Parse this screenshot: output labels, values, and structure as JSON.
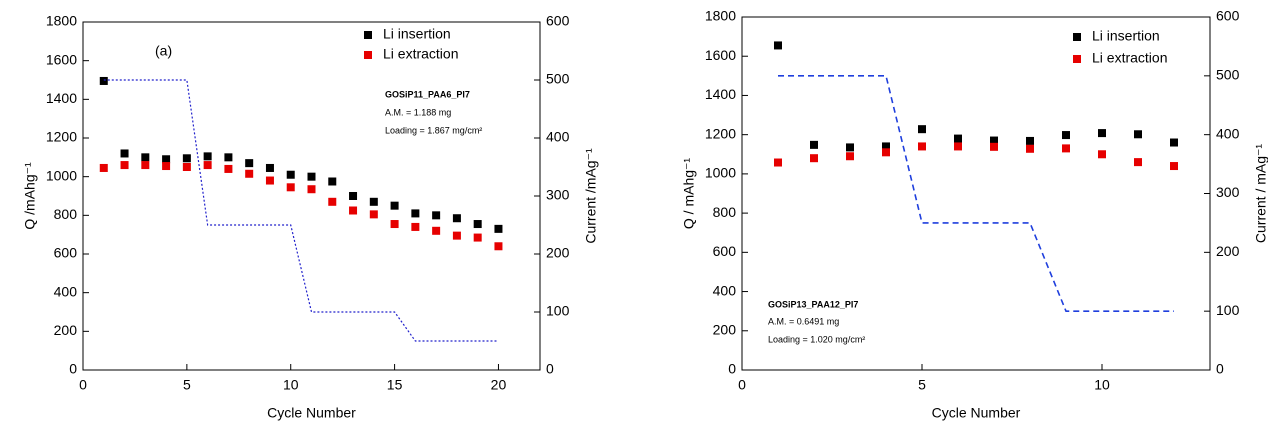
{
  "chart_data": [
    {
      "type": "scatter",
      "x": [
        1,
        2,
        3,
        4,
        5,
        6,
        7,
        8,
        9,
        10,
        11,
        12,
        13,
        14,
        15,
        16,
        17,
        18,
        19,
        20
      ],
      "series": [
        {
          "name": "Li insertion",
          "color": "#000000",
          "values": [
            1495,
            1120,
            1100,
            1090,
            1095,
            1105,
            1100,
            1070,
            1045,
            1010,
            1000,
            975,
            900,
            870,
            850,
            810,
            800,
            785,
            755,
            730
          ]
        },
        {
          "name": "Li extraction",
          "color": "#e60000",
          "values": [
            1045,
            1060,
            1060,
            1055,
            1050,
            1060,
            1040,
            1015,
            980,
            945,
            935,
            870,
            825,
            805,
            755,
            740,
            720,
            695,
            685,
            640
          ]
        },
        {
          "type": "line",
          "axis": "y2",
          "color": "#2222cc",
          "style": "dotted",
          "x": [
            1,
            5,
            6,
            10,
            11,
            15,
            16,
            20
          ],
          "values": [
            500,
            500,
            250,
            250,
            100,
            100,
            50,
            50
          ]
        }
      ],
      "xlabel": "Cycle Number",
      "ylabel": "Q /mAhg⁻¹",
      "y2label": "Current /mAg⁻¹",
      "xlim": [
        0,
        22
      ],
      "xticks": [
        0,
        5,
        10,
        15,
        20
      ],
      "ylim": [
        0,
        1800
      ],
      "yticks": [
        0,
        200,
        400,
        600,
        800,
        1000,
        1200,
        1400,
        1600,
        1800
      ],
      "y2lim": [
        0,
        600
      ],
      "y2ticks": [
        0,
        100,
        200,
        300,
        400,
        500,
        600
      ],
      "legend": "upper right",
      "annotations": [
        "(a)",
        "GOSiP11_PAA6_PI7",
        "A.M. = 1.188 mg",
        "Loading =  1.867 mg/cm²"
      ]
    },
    {
      "type": "scatter",
      "x": [
        1,
        2,
        3,
        4,
        5,
        6,
        7,
        8,
        9,
        10,
        11,
        12
      ],
      "series": [
        {
          "name": "Li insertion",
          "color": "#000000",
          "values": [
            1655,
            1148,
            1135,
            1140,
            1228,
            1180,
            1170,
            1168,
            1198,
            1208,
            1202,
            1160
          ]
        },
        {
          "name": "Li extraction",
          "color": "#e60000",
          "values": [
            1058,
            1080,
            1090,
            1110,
            1140,
            1140,
            1138,
            1128,
            1130,
            1100,
            1060,
            1040
          ]
        },
        {
          "type": "line",
          "axis": "y2",
          "color": "#1f3fdd",
          "style": "dashed",
          "x": [
            1,
            4,
            5,
            8,
            9,
            12
          ],
          "values": [
            500,
            500,
            250,
            250,
            100,
            100
          ]
        }
      ],
      "xlabel": "Cycle Number",
      "ylabel": "Q / mAhg⁻¹",
      "y2label": "Current / mAg⁻¹",
      "xlim": [
        0,
        13
      ],
      "xticks": [
        0,
        5,
        10
      ],
      "ylim": [
        0,
        1800
      ],
      "yticks": [
        0,
        200,
        400,
        600,
        800,
        1000,
        1200,
        1400,
        1600,
        1800
      ],
      "y2lim": [
        0,
        600
      ],
      "y2ticks": [
        0,
        100,
        200,
        300,
        400,
        500,
        600
      ],
      "legend": "upper right",
      "annotations": [
        "GOSiP13_PAA12_PI7",
        "A.M. = 0.6491 mg",
        "Loading = 1.020 mg/cm²"
      ]
    }
  ]
}
